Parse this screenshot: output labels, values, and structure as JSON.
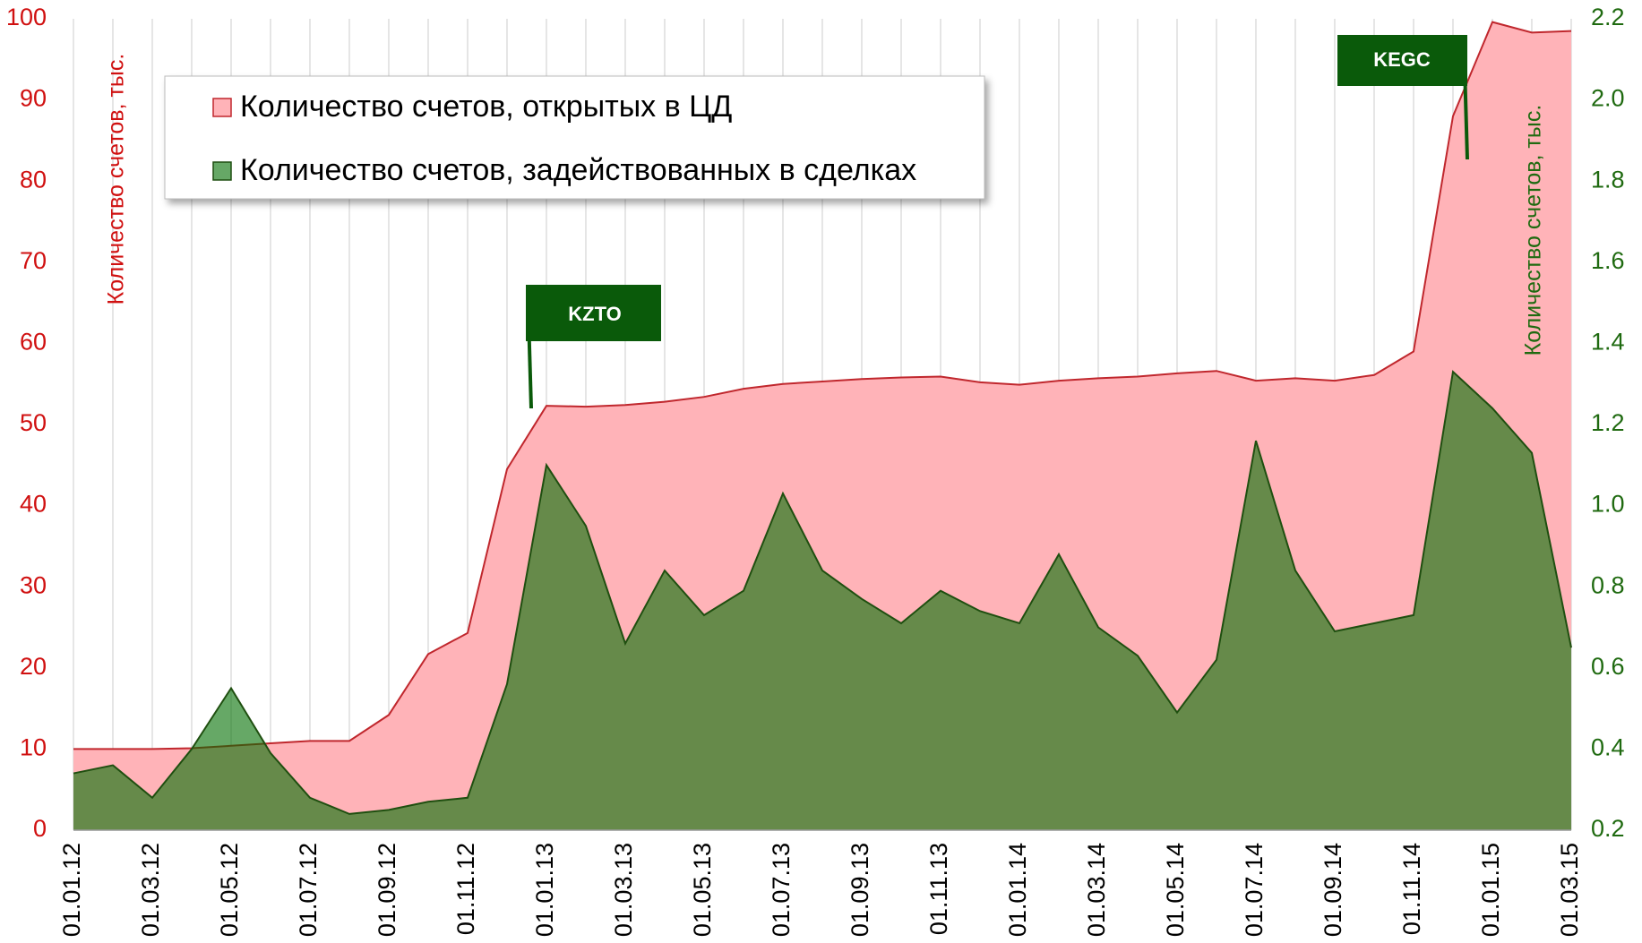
{
  "chart_data": {
    "type": "area",
    "categories": [
      "01.01.12",
      null,
      "01.03.12",
      null,
      "01.05.12",
      null,
      "01.07.12",
      null,
      "01.09.12",
      null,
      "01.11.12",
      null,
      "01.01.13",
      null,
      "01.03.13",
      null,
      "01.05.13",
      null,
      "01.07.13",
      null,
      "01.09.13",
      null,
      "01.11.13",
      null,
      "01.01.14",
      null,
      "01.03.14",
      null,
      "01.05.14",
      null,
      "01.07.14",
      null,
      "01.09.14",
      null,
      "01.11.14",
      null,
      "01.01.15",
      null,
      "01.03.15"
    ],
    "series": [
      {
        "name": "Количество счетов, открытых в ЦД",
        "color": "#ffb3b8",
        "line_color": "#c0272d",
        "values": [
          10,
          10,
          10,
          10.1,
          10.4,
          10.7,
          11,
          11,
          14.2,
          21.7,
          24.3,
          44.5,
          52.3,
          52.2,
          52.4,
          52.8,
          53.4,
          54.4,
          55,
          55.3,
          55.6,
          55.8,
          55.9,
          55.2,
          54.9,
          55.4,
          55.7,
          55.9,
          56.3,
          56.6,
          55.4,
          55.7,
          55.4,
          56.1,
          59,
          88,
          99.6,
          98.3,
          98.5
        ]
      },
      {
        "name": "Количество счетов, задействованных в сделках",
        "color": "#006e00",
        "line_color": "#1f4f10",
        "axis": "y2",
        "values": [
          0.34,
          0.36,
          0.28,
          0.4,
          0.55,
          0.39,
          0.28,
          0.24,
          0.25,
          0.27,
          0.28,
          0.56,
          1.1,
          0.95,
          0.66,
          0.84,
          0.73,
          0.79,
          1.03,
          0.84,
          0.77,
          0.71,
          0.79,
          0.74,
          0.71,
          0.88,
          0.7,
          0.63,
          0.49,
          0.62,
          1.16,
          0.84,
          0.69,
          0.71,
          0.73,
          1.33,
          1.24,
          1.13,
          0.65
        ]
      }
    ],
    "ylabel": "Количество счетов,  тыс.",
    "y2label": "Количество счетов, тыс.",
    "ylim": [
      0,
      100
    ],
    "yticks": [
      0,
      10,
      20,
      30,
      40,
      50,
      60,
      70,
      80,
      90,
      100
    ],
    "y2lim": [
      0.2,
      2.2
    ],
    "y2ticks": [
      0.2,
      0.4,
      0.6,
      0.8,
      {
        "value": 1.0,
        "label": "1.0"
      },
      1.2,
      1.4,
      1.6,
      1.8,
      {
        "value": 2.0,
        "label": "2.0"
      },
      2.2
    ],
    "annotations": [
      "KZTO",
      "KEGC"
    ],
    "grid": true
  }
}
